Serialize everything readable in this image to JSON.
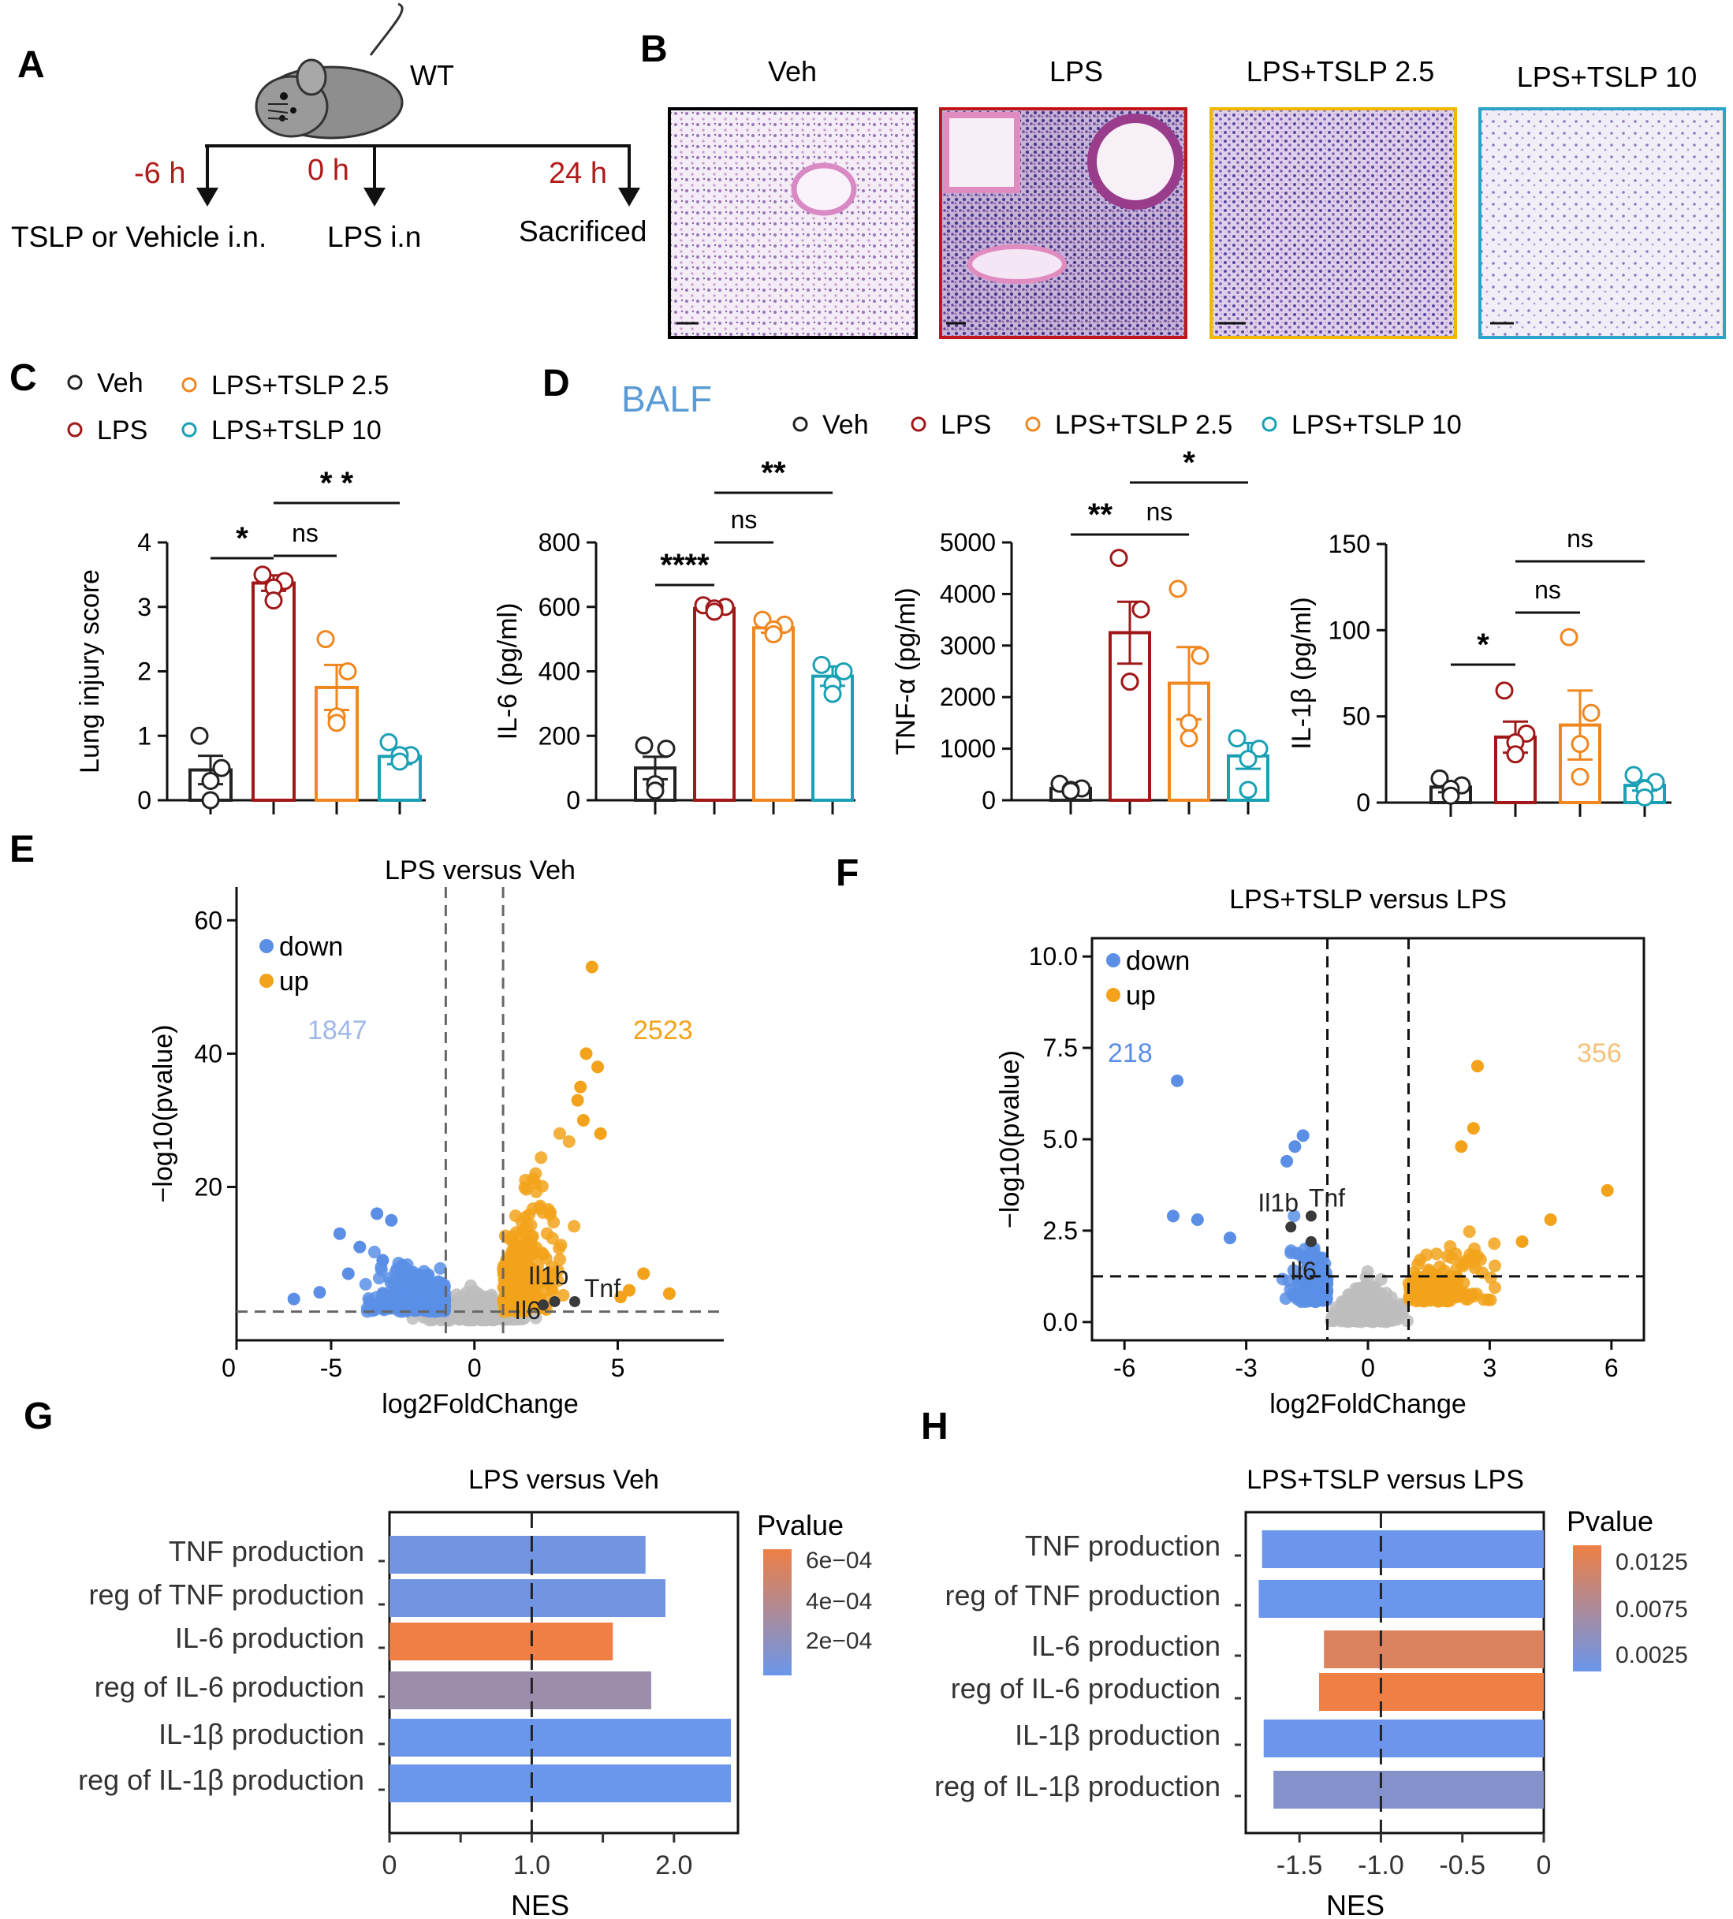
{
  "colors": {
    "veh": "#222222",
    "lps": "#a01818",
    "tslp25": "#f0861e",
    "tslp10": "#1aa0b4",
    "down": "#5b8fe6",
    "up": "#f2a31b",
    "gray": "#bdbdbd",
    "balf": "#5b9bd5",
    "red": "#c0161b",
    "hist_veh": "#000000",
    "hist_lps": "#c0161b",
    "hist_tslp25": "#f2b800",
    "hist_tslp10": "#2aa4c8",
    "nes_blue": "#6a96ec",
    "nes_orange": "#ef7f45",
    "nes_mid": "#7b8fdc"
  },
  "panels": {
    "A": {
      "label": "A",
      "strain": "WT",
      "times": [
        {
          "t": "-6 h",
          "event": "TSLP or Vehicle i.n."
        },
        {
          "t": "0 h",
          "event": "LPS  i.n"
        },
        {
          "t": "24 h",
          "event": "Sacrificed"
        }
      ]
    },
    "B": {
      "label": "B",
      "images": [
        {
          "title": "Veh"
        },
        {
          "title": "LPS"
        },
        {
          "title": "LPS+TSLP 2.5"
        },
        {
          "title": "LPS+TSLP 10"
        }
      ]
    },
    "C": {
      "label": "C"
    },
    "D": {
      "label": "D",
      "subtitle": "BALF"
    },
    "E": {
      "label": "E"
    },
    "F": {
      "label": "F"
    },
    "G": {
      "label": "G"
    },
    "H": {
      "label": "H"
    }
  },
  "chart_data": [
    {
      "id": "C",
      "type": "bar",
      "title": "",
      "ylabel": "Lung injury score",
      "ylim": [
        0,
        4
      ],
      "yticks": [
        "0",
        "1",
        "2",
        "3",
        "4"
      ],
      "legend": [
        "Veh",
        "LPS+TSLP 2.5",
        "LPS",
        "LPS+TSLP 10"
      ],
      "categories": [
        "Veh",
        "LPS",
        "LPS+TSLP 2.5",
        "LPS+TSLP 10"
      ],
      "values": [
        0.47,
        3.37,
        1.75,
        0.68
      ],
      "sem": [
        0.22,
        0.12,
        0.35,
        0.12
      ],
      "points": [
        [
          1.0,
          0.5,
          0.3,
          0.0
        ],
        [
          3.5,
          3.4,
          3.3,
          3.1
        ],
        [
          2.5,
          2.0,
          1.3,
          1.2
        ],
        [
          0.9,
          0.7,
          0.7,
          0.6
        ]
      ],
      "sig": [
        {
          "a": 0,
          "b": 1,
          "label": "*"
        },
        {
          "a": 1,
          "b": 2,
          "label": "ns"
        },
        {
          "a": 1,
          "b": 3,
          "label": "* *"
        }
      ]
    },
    {
      "id": "D1",
      "type": "bar",
      "ylabel": "IL-6 (pg/ml)",
      "ylim": [
        0,
        800
      ],
      "yticks": [
        "0",
        "200",
        "400",
        "600",
        "800"
      ],
      "legend": [
        "Veh",
        "LPS",
        "LPS+TSLP 2.5",
        "LPS+TSLP 10"
      ],
      "categories": [
        "Veh",
        "LPS",
        "LPS+TSLP 2.5",
        "LPS+TSLP 10"
      ],
      "values": [
        100,
        595,
        535,
        385
      ],
      "sem": [
        35,
        10,
        15,
        30
      ],
      "points": [
        [
          170,
          160,
          50,
          30
        ],
        [
          605,
          600,
          595,
          585
        ],
        [
          560,
          545,
          530,
          515
        ],
        [
          420,
          400,
          360,
          330
        ]
      ],
      "sig": [
        {
          "a": 0,
          "b": 1,
          "label": "****"
        },
        {
          "a": 1,
          "b": 2,
          "label": "ns"
        },
        {
          "a": 1,
          "b": 3,
          "label": "**"
        }
      ]
    },
    {
      "id": "D2",
      "type": "bar",
      "ylabel": "TNF-α (pg/ml)",
      "ylim": [
        0,
        5000
      ],
      "yticks": [
        "0",
        "1000",
        "2000",
        "3000",
        "4000",
        "5000"
      ],
      "categories": [
        "Veh",
        "LPS",
        "LPS+TSLP 2.5",
        "LPS+TSLP 10"
      ],
      "values": [
        230,
        3250,
        2270,
        860
      ],
      "sem": [
        60,
        600,
        700,
        250
      ],
      "points": [
        [
          320,
          230,
          200,
          180
        ],
        [
          4700,
          3700,
          2300,
          2300
        ],
        [
          4100,
          2800,
          1500,
          1200
        ],
        [
          1200,
          1000,
          800,
          200
        ]
      ],
      "sig": [
        {
          "a": 0,
          "b": 1,
          "label": "**"
        },
        {
          "a": 1,
          "b": 2,
          "label": "ns"
        },
        {
          "a": 1,
          "b": 3,
          "label": "*"
        }
      ]
    },
    {
      "id": "D3",
      "type": "bar",
      "ylabel": "IL-1β (pg/ml)",
      "ylim": [
        0,
        150
      ],
      "yticks": [
        "0",
        "50",
        "100",
        "150"
      ],
      "categories": [
        "Veh",
        "LPS",
        "LPS+TSLP 2.5",
        "LPS+TSLP 10"
      ],
      "values": [
        9,
        38,
        45,
        10
      ],
      "sem": [
        3,
        9,
        20,
        3
      ],
      "points": [
        [
          14,
          10,
          8,
          4
        ],
        [
          65,
          40,
          35,
          28
        ],
        [
          96,
          52,
          34,
          15
        ],
        [
          16,
          12,
          8,
          3
        ]
      ],
      "sig": [
        {
          "a": 0,
          "b": 1,
          "label": "*"
        },
        {
          "a": 1,
          "b": 2,
          "label": "ns"
        },
        {
          "a": 1,
          "b": 3,
          "label": "ns"
        }
      ]
    },
    {
      "id": "E",
      "type": "scatter",
      "title": "LPS versus Veh",
      "xlabel": "log2FoldChange",
      "ylabel": "−log10(pvalue)",
      "xlim": [
        -8.3,
        8.7
      ],
      "ylim": [
        -3,
        65
      ],
      "xticks": [
        "0",
        "-5",
        "0",
        "5"
      ],
      "yticks": [
        "20",
        "40",
        "60"
      ],
      "legend": [
        "down",
        "up"
      ],
      "down_count": "1847",
      "up_count": "2523",
      "genes": [
        {
          "name": "Il1b",
          "x": 2.8,
          "y": 2.8
        },
        {
          "name": "Il6",
          "x": 2.4,
          "y": 2.3
        },
        {
          "name": "Tnf",
          "x": 3.5,
          "y": 2.8
        }
      ]
    },
    {
      "id": "F",
      "type": "scatter",
      "title": "LPS+TSLP  versus LPS",
      "xlabel": "log2FoldChange",
      "ylabel": "−log10(pvalue)",
      "xlim": [
        -6.8,
        6.8
      ],
      "ylim": [
        -0.5,
        10.5
      ],
      "xticks": [
        "-6",
        "-3",
        "0",
        "3",
        "6"
      ],
      "yticks": [
        "0.0",
        "2.5",
        "5.0",
        "7.5",
        "10.0"
      ],
      "legend": [
        "down",
        "up"
      ],
      "down_count": "218",
      "up_count": "356",
      "genes": [
        {
          "name": "Il1b",
          "x": -1.9,
          "y": 2.6
        },
        {
          "name": "Tnf",
          "x": -1.4,
          "y": 2.9
        },
        {
          "name": "Il6",
          "x": -1.4,
          "y": 2.2
        }
      ]
    },
    {
      "id": "G",
      "type": "bar",
      "title": "LPS versus Veh",
      "xlabel": "NES",
      "xlim": [
        0,
        2.45
      ],
      "xticks": [
        "0",
        "1.0",
        "2.0"
      ],
      "categories": [
        "TNF production",
        "reg of TNF production",
        "IL-6 production",
        "reg of IL-6 production",
        "IL-1β production",
        "reg of IL-1β production"
      ],
      "values": [
        1.8,
        1.94,
        1.57,
        1.84,
        2.4,
        2.4
      ],
      "pvalues": [
        5e-05,
        5e-05,
        0.00065,
        0.00025,
        1e-05,
        1e-05
      ],
      "legend_title": "Pvalue",
      "legend_ticks": [
        "6e−04",
        "4e−04",
        "2e−04"
      ]
    },
    {
      "id": "H",
      "type": "bar",
      "title": "LPS+TSLP  versus LPS",
      "xlabel": "NES",
      "xlim": [
        -1.83,
        0
      ],
      "xticks": [
        "-1.5",
        "-1.0",
        "-0.5",
        "0"
      ],
      "categories": [
        "TNF production",
        "reg of TNF production",
        "IL-6 production",
        "reg of IL-6 production",
        "IL-1β production",
        "reg of IL-1β production"
      ],
      "values": [
        -1.73,
        -1.75,
        -1.35,
        -1.38,
        -1.72,
        -1.66
      ],
      "pvalues": [
        0.0005,
        0.0004,
        0.0115,
        0.0135,
        0.0005,
        0.003
      ],
      "legend_title": "Pvalue",
      "legend_ticks": [
        "0.0125",
        "0.0075",
        "0.0025"
      ]
    }
  ]
}
